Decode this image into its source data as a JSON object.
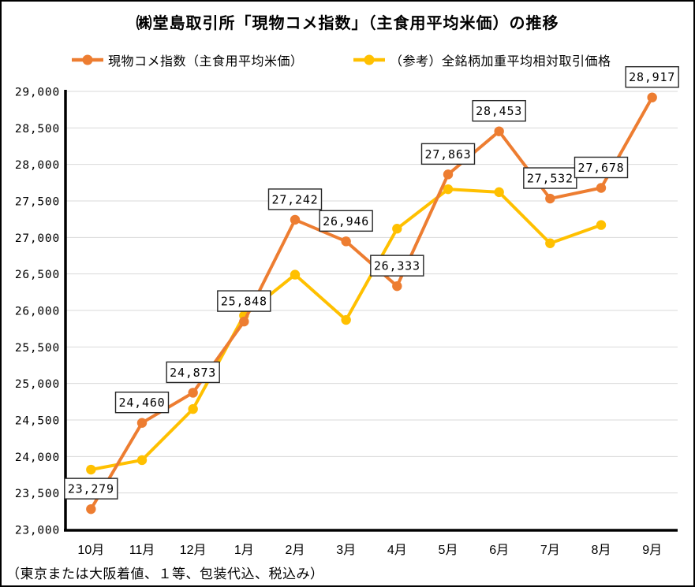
{
  "title": "㈱堂島取引所「現物コメ指数」（主食用平均米価）の推移",
  "legend": [
    {
      "label": "現物コメ指数（主食用平均米価）",
      "color": "#ED7D31"
    },
    {
      "label": "（参考）全銘柄加重平均相対取引価格",
      "color": "#FFC000"
    }
  ],
  "footnote": "（東京または大阪着値、１等、包装代込、税込み）",
  "chart_data": {
    "type": "line",
    "categories": [
      "10月",
      "11月",
      "12月",
      "1月",
      "2月",
      "3月",
      "4月",
      "5月",
      "6月",
      "7月",
      "8月",
      "9月"
    ],
    "series": [
      {
        "name": "現物コメ指数（主食用平均米価）",
        "color": "#ED7D31",
        "values": [
          23279,
          24460,
          24873,
          25848,
          27242,
          26946,
          26333,
          27863,
          28453,
          27532,
          27678,
          28917
        ],
        "data_labels": [
          "23,279",
          "24,460",
          "24,873",
          "25,848",
          "27,242",
          "26,946",
          "26,333",
          "27,863",
          "28,453",
          "27,532",
          "27,678",
          "28,917"
        ]
      },
      {
        "name": "（参考）全銘柄加重平均相対取引価格",
        "color": "#FFC000",
        "values": [
          23820,
          23950,
          24650,
          25930,
          26490,
          25870,
          27120,
          27660,
          27620,
          26920,
          27170
        ],
        "data_labels": []
      }
    ],
    "ylim": [
      23000,
      29000
    ],
    "ytick_step": 500,
    "ytick_labels": [
      "23,000",
      "23,500",
      "24,000",
      "24,500",
      "25,000",
      "25,500",
      "26,000",
      "26,500",
      "27,000",
      "27,500",
      "28,000",
      "28,500",
      "29,000"
    ],
    "grid": "horizontal",
    "gridline_color": "#D9D9D9",
    "axis_color": "#000000",
    "label_box": {
      "fill": "#FFFFFF",
      "border": "#262626"
    },
    "legend_position": "top"
  }
}
